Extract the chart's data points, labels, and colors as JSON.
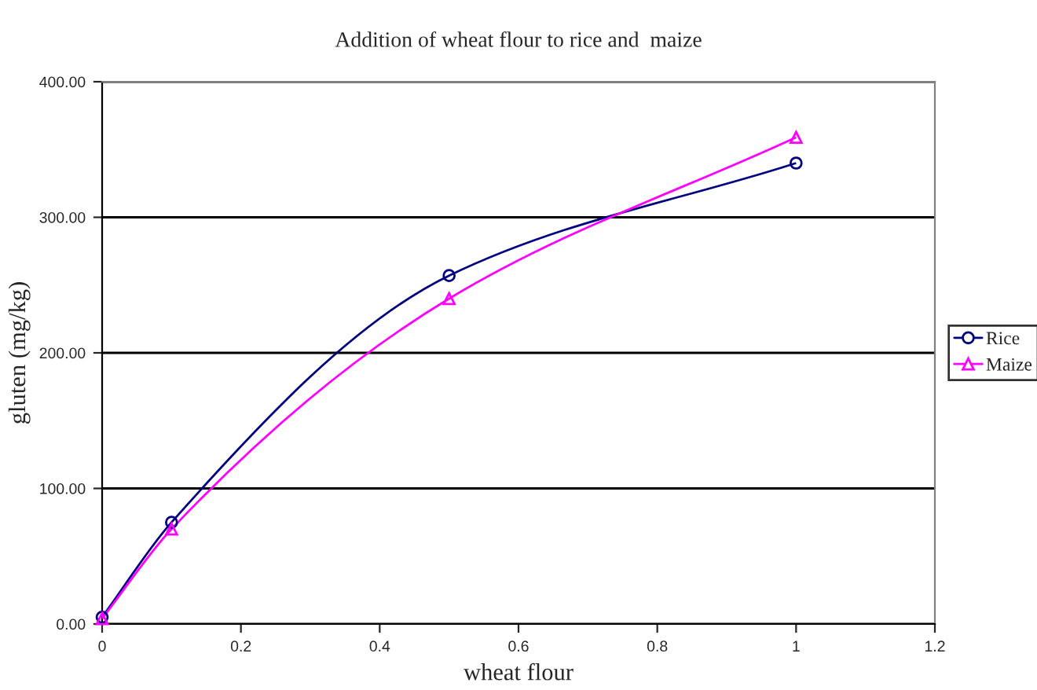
{
  "chart_data": {
    "type": "line",
    "title": "Addition of wheat flour to rice and  maize",
    "xlabel": "wheat flour",
    "ylabel": "gluten (mg/kg)",
    "x": [
      0,
      0.1,
      0.5,
      1
    ],
    "series": [
      {
        "name": "Rice",
        "color": "#000080",
        "values": [
          5,
          75,
          257,
          340
        ],
        "marker": "circle"
      },
      {
        "name": "Maize",
        "color": "#ff00ff",
        "values": [
          4,
          70,
          240,
          359
        ],
        "marker": "triangle"
      }
    ],
    "xlim": [
      0,
      1.2
    ],
    "xticks": [
      0,
      0.2,
      0.4,
      0.6,
      0.8,
      1,
      1.2
    ],
    "ylim": [
      0,
      400
    ],
    "yticks": [
      {
        "value": 0,
        "label": "0.00"
      },
      {
        "value": 100,
        "label": "100.00"
      },
      {
        "value": 200,
        "label": "200.00"
      },
      {
        "value": 300,
        "label": "300.00"
      },
      {
        "value": 400,
        "label": "400.00"
      }
    ],
    "grid": "y",
    "legend": "right",
    "line_style": "solid"
  }
}
